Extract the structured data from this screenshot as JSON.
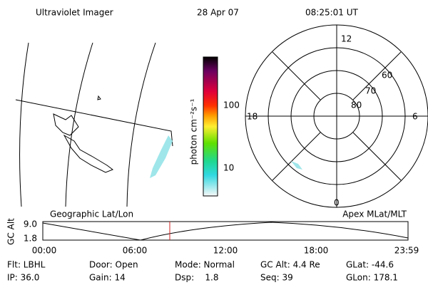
{
  "header": {
    "title": "Ultraviolet Imager",
    "date": "28 Apr 07",
    "time": "08:25:01 UT"
  },
  "colorbar": {
    "label": "photon cm⁻²s⁻¹",
    "ticks": [
      "100",
      "10"
    ]
  },
  "polar": {
    "mlt_labels": [
      "12",
      "18",
      "6",
      "0"
    ],
    "lat_labels": [
      "60",
      "70",
      "80"
    ]
  },
  "timeline": {
    "left_label": "Geographic Lat/Lon",
    "right_label": "Apex MLat/MLT",
    "axis_label": "GC Alt",
    "yticks": [
      "9.0",
      "1.8"
    ],
    "xticks": [
      "00:00",
      "06:00",
      "12:00",
      "18:00",
      "23:59"
    ]
  },
  "status": {
    "rows": [
      [
        "Flt: LBHL",
        "Door: Open",
        "Mode: Normal",
        "GC Alt: 4.4 Re",
        "GLat: -44.6"
      ],
      [
        "IP: 36.0",
        "Gain: 14",
        "Dsp:    1.8",
        "Seq: 39",
        "GLon: 178.1"
      ]
    ]
  }
}
